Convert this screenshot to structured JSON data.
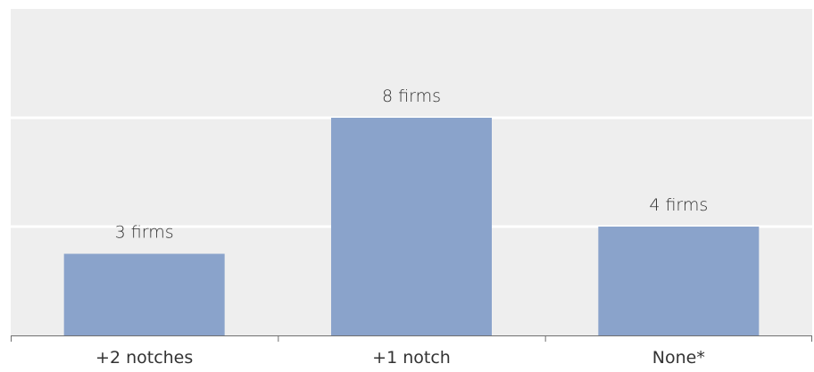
{
  "chart_data": {
    "type": "bar",
    "categories": [
      "+2 notches",
      "+1 notch",
      "None*"
    ],
    "values": [
      3,
      8,
      4
    ],
    "data_labels": [
      "3 firms",
      "8 firms",
      "4 firms"
    ],
    "ylim": [
      0,
      12
    ],
    "grid": "horizontal-bands",
    "colors": {
      "bar": "#8aa3cb",
      "band": "#eeeeee",
      "axis": "#6f6f6f",
      "text": "#333333"
    }
  }
}
